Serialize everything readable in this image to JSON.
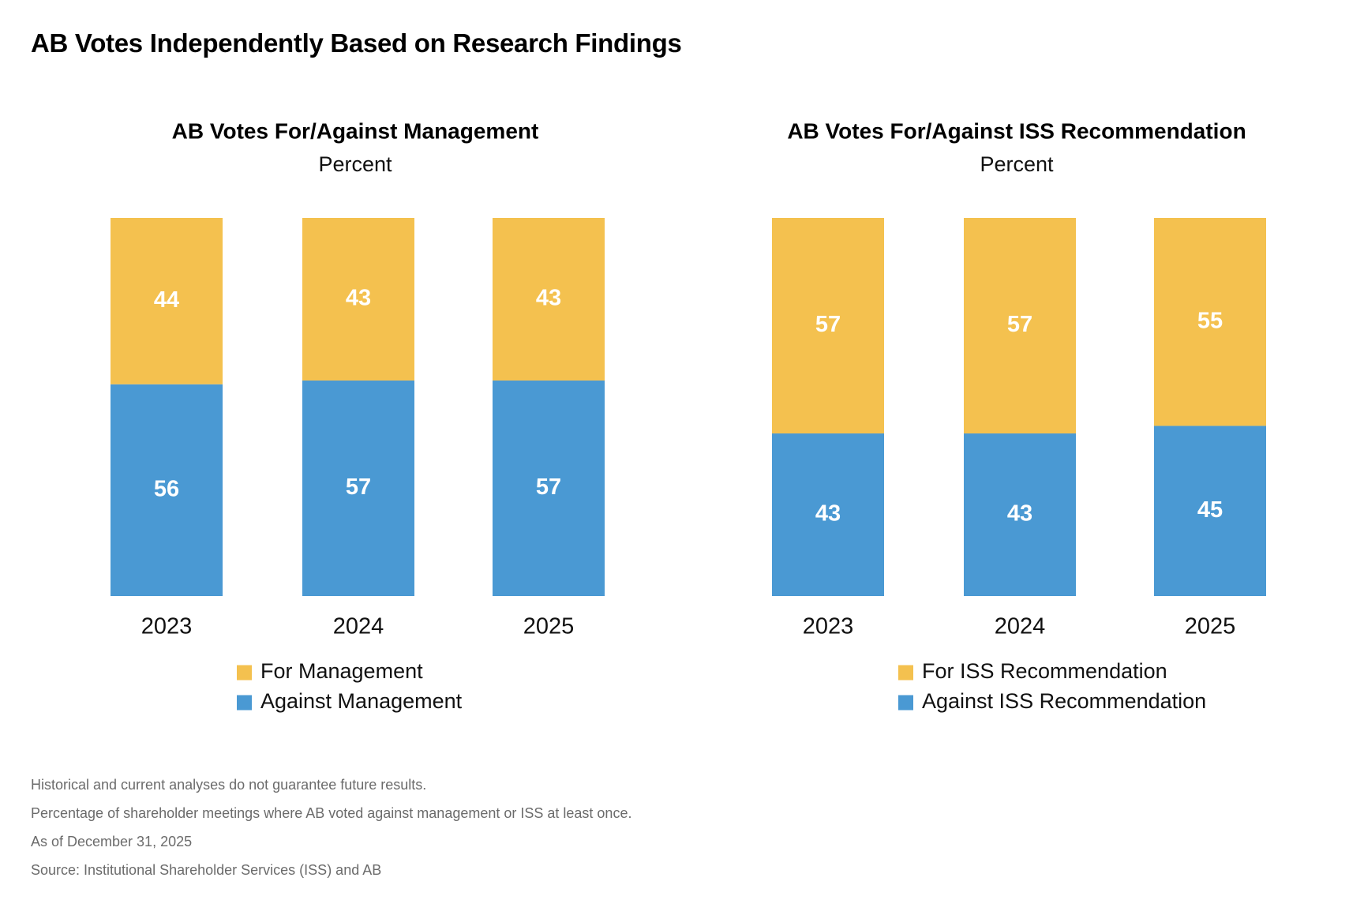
{
  "title": "AB Votes Independently Based on Research Findings",
  "colors": {
    "for": "#F4C14F",
    "against": "#4A99D3",
    "bar_label": "#FFFFFF",
    "text": "#111111",
    "footnote": "#6B6B6B"
  },
  "chart_data": [
    {
      "type": "bar",
      "stacked": true,
      "title": "AB Votes For/Against Management",
      "subtitle": "Percent",
      "categories": [
        "2023",
        "2024",
        "2025"
      ],
      "ylim": [
        0,
        100
      ],
      "grid": false,
      "legend_position": "bottom",
      "series": [
        {
          "name": "Against Management",
          "values": [
            56,
            57,
            57
          ],
          "color": "#4A99D3"
        },
        {
          "name": "For Management",
          "values": [
            44,
            43,
            43
          ],
          "color": "#F4C14F"
        }
      ],
      "legend": [
        "For Management",
        "Against Management"
      ]
    },
    {
      "type": "bar",
      "stacked": true,
      "title": "AB Votes For/Against ISS Recommendation",
      "subtitle": "Percent",
      "categories": [
        "2023",
        "2024",
        "2025"
      ],
      "ylim": [
        0,
        100
      ],
      "grid": false,
      "legend_position": "bottom",
      "series": [
        {
          "name": "Against ISS Recommendation",
          "values": [
            43,
            43,
            45
          ],
          "color": "#4A99D3"
        },
        {
          "name": "For ISS Recommendation",
          "values": [
            57,
            57,
            55
          ],
          "color": "#F4C14F"
        }
      ],
      "legend": [
        "For ISS Recommendation",
        "Against ISS Recommendation"
      ]
    }
  ],
  "footnotes": [
    "Historical and current analyses do not guarantee future results.",
    "Percentage of shareholder meetings where AB voted against management or ISS at least once.",
    "As of December 31, 2025",
    "Source: Institutional Shareholder Services (ISS) and AB"
  ]
}
